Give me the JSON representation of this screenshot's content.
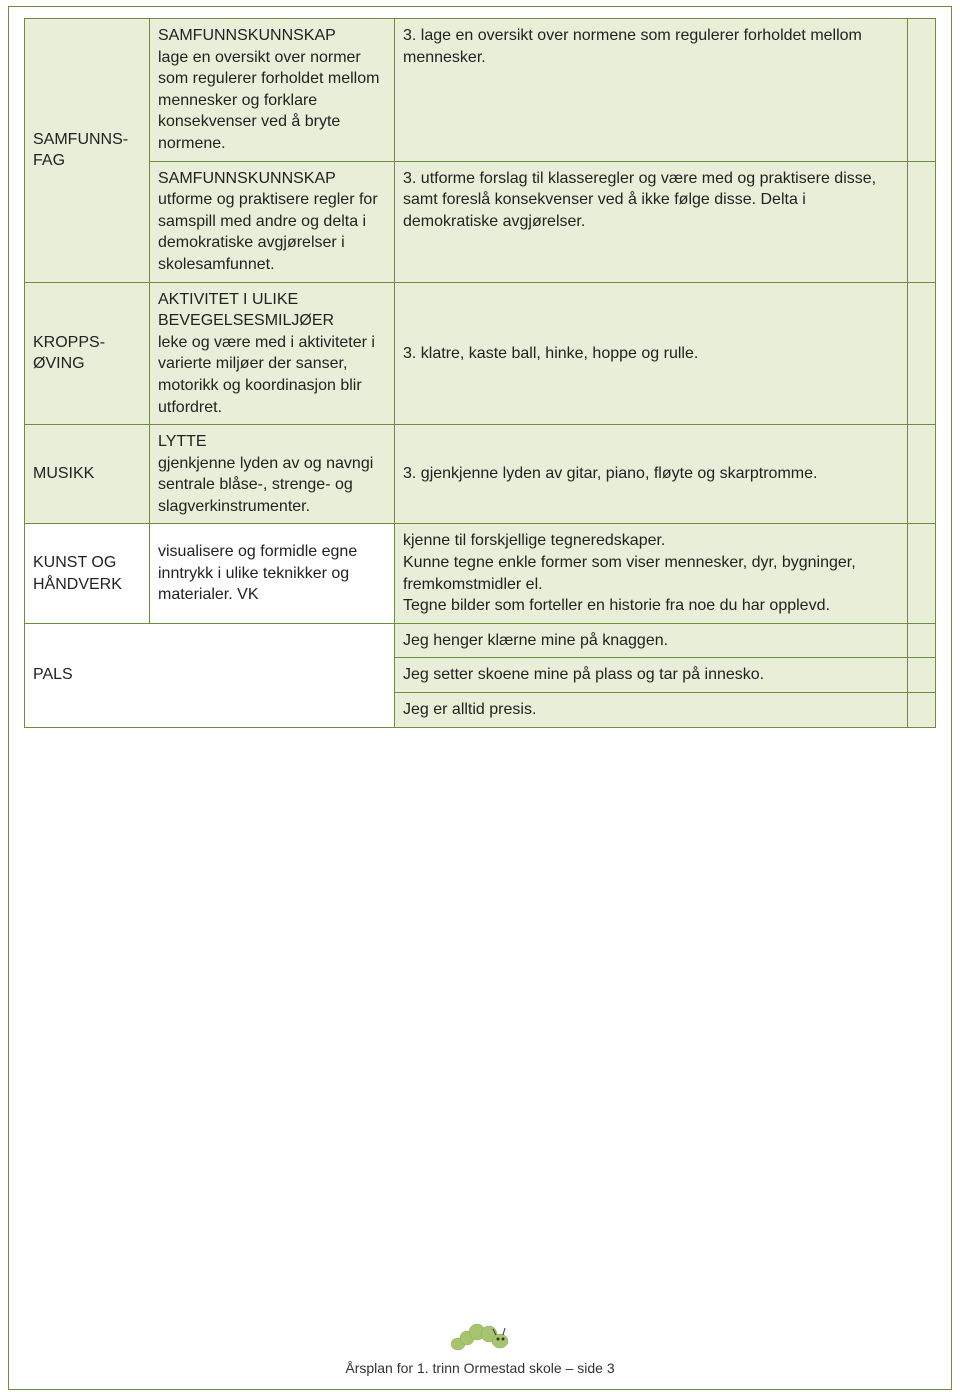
{
  "colors": {
    "border": "#6b8e3f",
    "cell_bg": "#e8eed7",
    "white": "#ffffff",
    "worm_body": "#a7c46f",
    "worm_dark": "#8fa85a"
  },
  "rows": [
    {
      "subject": "SAMFUNNS-FAG",
      "subject_rowspan": 2,
      "cells": [
        {
          "col2": "SAMFUNNSKUNNSKAP\nlage en oversikt over normer som regulerer forholdet mellom mennesker og forklare konsekvenser ved å bryte normene.",
          "col3": "3. lage en oversikt over normene som regulerer forholdet mellom mennesker."
        },
        {
          "col2": "SAMFUNNSKUNNSKAP\nutforme og praktisere regler for samspill med andre og delta i demokratiske avgjørelser i skolesamfunnet.",
          "col3": "3. utforme forslag til klasseregler og være med og praktisere disse, samt foreslå konsekvenser ved å ikke følge disse. Delta i demokratiske avgjørelser."
        }
      ]
    },
    {
      "subject": "KROPPS-ØVING",
      "subject_rowspan": 1,
      "cells": [
        {
          "col2": "AKTIVITET I ULIKE BEVEGELSESMILJØER\nleke og være med i aktiviteter i varierte miljøer der sanser, motorikk og koordinasjon blir utfordret.",
          "col3": "3. klatre, kaste ball, hinke, hoppe og rulle."
        }
      ]
    },
    {
      "subject": "MUSIKK",
      "subject_rowspan": 1,
      "cells": [
        {
          "col2": "LYTTE\ngjenkjenne lyden av og navngi sentrale blåse-, strenge- og slagverkinstrumenter.",
          "col3": "3. gjenkjenne lyden av gitar, piano, fløyte og skarptromme."
        }
      ]
    },
    {
      "subject": "KUNST OG HÅNDVERK",
      "subject_rowspan": 1,
      "subject_white": true,
      "cells": [
        {
          "col2_white": true,
          "col2": "visualisere og formidle egne inntrykk i ulike teknikker og materialer. VK",
          "col3": "kjenne til forskjellige tegneredskaper.\nKunne tegne enkle former som viser mennesker, dyr, bygninger, fremkomstmidler el.\nTegne bilder som forteller en historie fra noe du har opplevd."
        }
      ]
    },
    {
      "subject": "PALS",
      "subject_rowspan": 3,
      "subject_colspan": 2,
      "subject_white": true,
      "cells": [
        {
          "col3": "Jeg henger klærne mine på knaggen."
        },
        {
          "col3": "Jeg setter skoene mine på plass og tar på innesko."
        },
        {
          "col3": "Jeg er alltid presis."
        }
      ]
    }
  ],
  "footer": "Årsplan for 1. trinn Ormestad skole – side 3"
}
